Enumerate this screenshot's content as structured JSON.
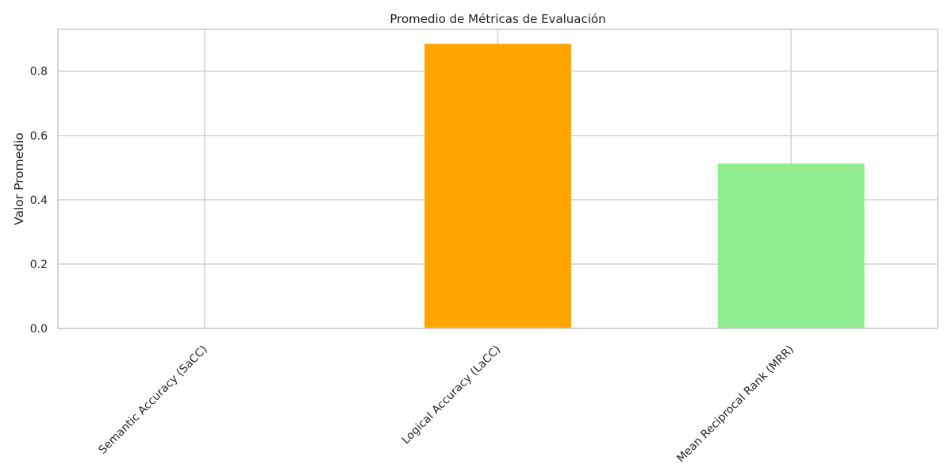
{
  "chart_data": {
    "type": "bar",
    "title": "Promedio de Métricas de Evaluación",
    "xlabel": "",
    "ylabel": "Valor Promedio",
    "categories": [
      "Semantic Accuracy (SaCC)",
      "Logical Accuracy (LaCC)",
      "Mean Reciprocal Rank (MRR)"
    ],
    "values": [
      0.0,
      0.885,
      0.513
    ],
    "colors": [
      "#87ceeb",
      "#ffa500",
      "#90ee90"
    ],
    "ylim": [
      0,
      0.93
    ],
    "yticks": [
      0.0,
      0.2,
      0.4,
      0.6,
      0.8
    ],
    "ytick_labels": [
      "0.0",
      "0.2",
      "0.4",
      "0.6",
      "0.8"
    ],
    "grid": true,
    "legend": "none"
  }
}
